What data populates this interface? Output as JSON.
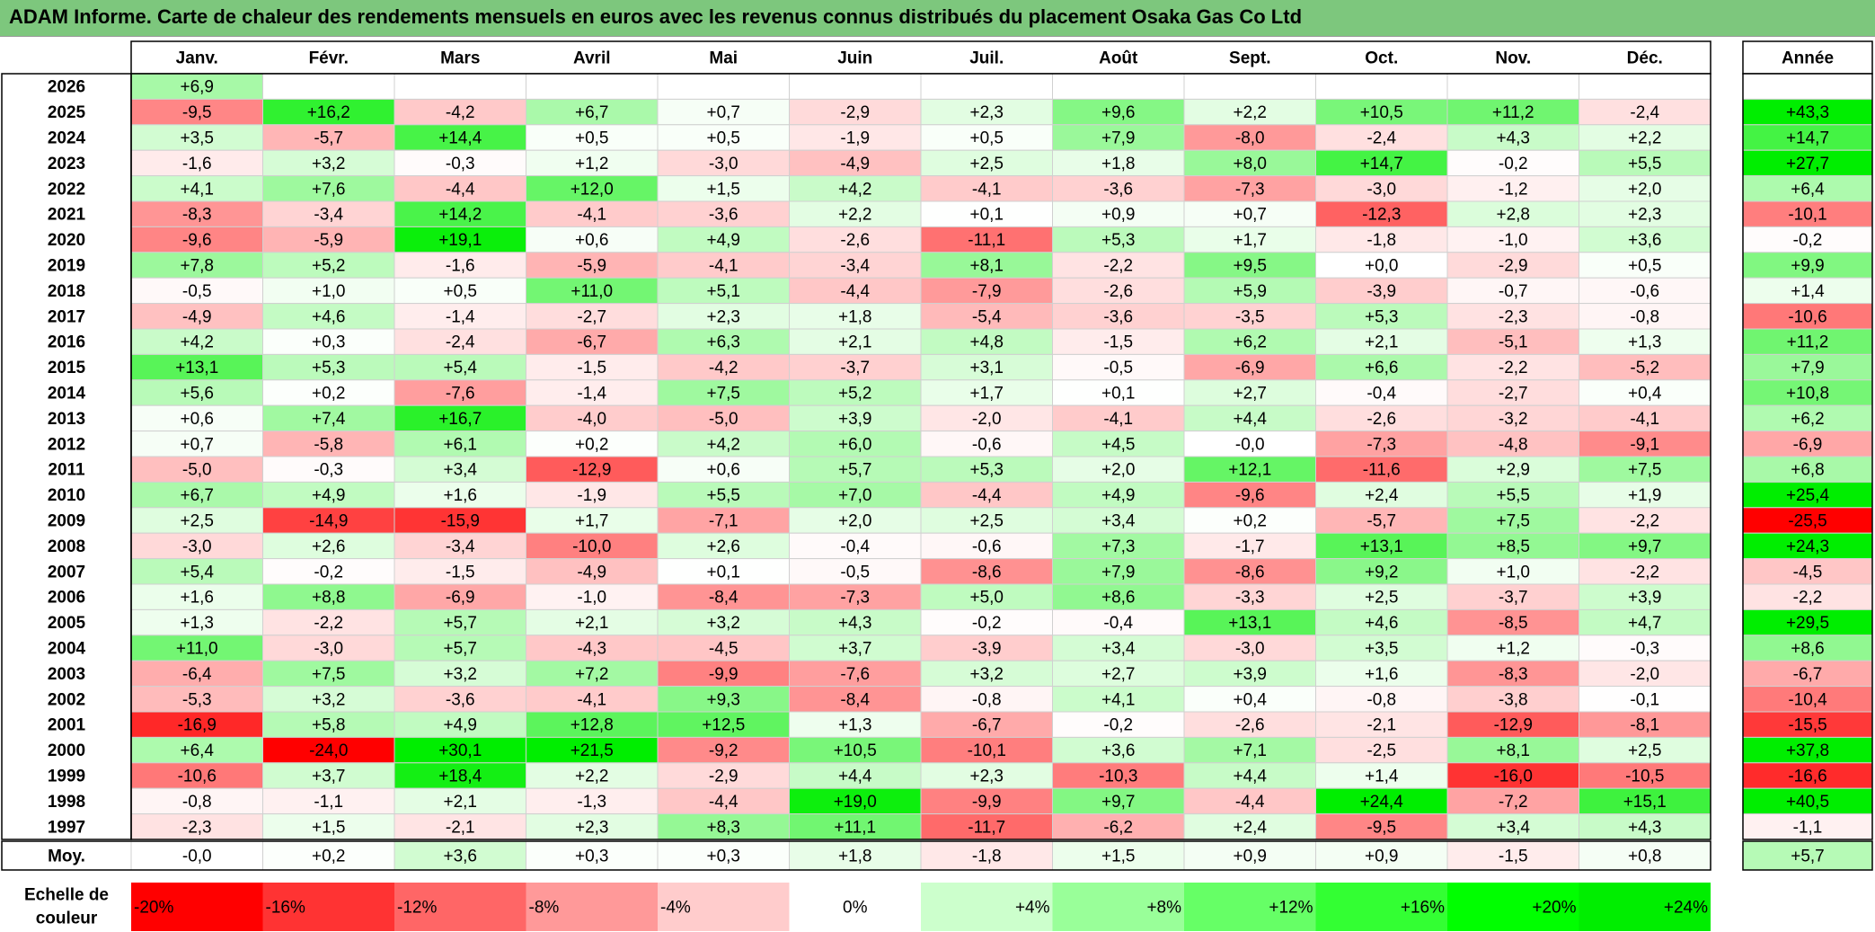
{
  "title": "ADAM Informe. Carte de chaleur des rendements mensuels en euros avec les revenus connus distribués du placement Osaka Gas Co Ltd",
  "chart_data": {
    "type": "heatmap",
    "months": [
      "Janv.",
      "Févr.",
      "Mars",
      "Avril",
      "Mai",
      "Juin",
      "Juil.",
      "Août",
      "Sept.",
      "Oct.",
      "Nov.",
      "Déc."
    ],
    "year_header": "Année",
    "rows": [
      {
        "year": "2026",
        "values": [
          "+6,9",
          null,
          null,
          null,
          null,
          null,
          null,
          null,
          null,
          null,
          null,
          null
        ],
        "annual": null
      },
      {
        "year": "2025",
        "values": [
          "-9,5",
          "+16,2",
          "-4,2",
          "+6,7",
          "+0,7",
          "-2,9",
          "+2,3",
          "+9,6",
          "+2,2",
          "+10,5",
          "+11,2",
          "-2,4"
        ],
        "annual": "+43,3"
      },
      {
        "year": "2024",
        "values": [
          "+3,5",
          "-5,7",
          "+14,4",
          "+0,5",
          "+0,5",
          "-1,9",
          "+0,5",
          "+7,9",
          "-8,0",
          "-2,4",
          "+4,3",
          "+2,2"
        ],
        "annual": "+14,7"
      },
      {
        "year": "2023",
        "values": [
          "-1,6",
          "+3,2",
          "-0,3",
          "+1,2",
          "-3,0",
          "-4,9",
          "+2,5",
          "+1,8",
          "+8,0",
          "+14,7",
          "-0,2",
          "+5,5"
        ],
        "annual": "+27,7"
      },
      {
        "year": "2022",
        "values": [
          "+4,1",
          "+7,6",
          "-4,4",
          "+12,0",
          "+1,5",
          "+4,2",
          "-4,1",
          "-3,6",
          "-7,3",
          "-3,0",
          "-1,2",
          "+2,0"
        ],
        "annual": "+6,4"
      },
      {
        "year": "2021",
        "values": [
          "-8,3",
          "-3,4",
          "+14,2",
          "-4,1",
          "-3,6",
          "+2,2",
          "+0,1",
          "+0,9",
          "+0,7",
          "-12,3",
          "+2,8",
          "+2,3"
        ],
        "annual": "-10,1"
      },
      {
        "year": "2020",
        "values": [
          "-9,6",
          "-5,9",
          "+19,1",
          "+0,6",
          "+4,9",
          "-2,6",
          "-11,1",
          "+5,3",
          "+1,7",
          "-1,8",
          "-1,0",
          "+3,6"
        ],
        "annual": "-0,2"
      },
      {
        "year": "2019",
        "values": [
          "+7,8",
          "+5,2",
          "-1,6",
          "-5,9",
          "-4,1",
          "-3,4",
          "+8,1",
          "-2,2",
          "+9,5",
          "+0,0",
          "-2,9",
          "+0,5"
        ],
        "annual": "+9,9"
      },
      {
        "year": "2018",
        "values": [
          "-0,5",
          "+1,0",
          "+0,5",
          "+11,0",
          "+5,1",
          "-4,4",
          "-7,9",
          "-2,6",
          "+5,9",
          "-3,9",
          "-0,7",
          "-0,6"
        ],
        "annual": "+1,4"
      },
      {
        "year": "2017",
        "values": [
          "-4,9",
          "+4,6",
          "-1,4",
          "-2,7",
          "+2,3",
          "+1,8",
          "-5,4",
          "-3,6",
          "-3,5",
          "+5,3",
          "-2,3",
          "-0,8"
        ],
        "annual": "-10,6"
      },
      {
        "year": "2016",
        "values": [
          "+4,2",
          "+0,3",
          "-2,4",
          "-6,7",
          "+6,3",
          "+2,1",
          "+4,8",
          "-1,5",
          "+6,2",
          "+2,1",
          "-5,1",
          "+1,3"
        ],
        "annual": "+11,2"
      },
      {
        "year": "2015",
        "values": [
          "+13,1",
          "+5,3",
          "+5,4",
          "-1,5",
          "-4,2",
          "-3,7",
          "+3,1",
          "-0,5",
          "-6,9",
          "+6,6",
          "-2,2",
          "-5,2"
        ],
        "annual": "+7,9"
      },
      {
        "year": "2014",
        "values": [
          "+5,6",
          "+0,2",
          "-7,6",
          "-1,4",
          "+7,5",
          "+5,2",
          "+1,7",
          "+0,1",
          "+2,7",
          "-0,4",
          "-2,7",
          "+0,4"
        ],
        "annual": "+10,8"
      },
      {
        "year": "2013",
        "values": [
          "+0,6",
          "+7,4",
          "+16,7",
          "-4,0",
          "-5,0",
          "+3,9",
          "-2,0",
          "-4,1",
          "+4,4",
          "-2,6",
          "-3,2",
          "-4,1"
        ],
        "annual": "+6,2"
      },
      {
        "year": "2012",
        "values": [
          "+0,7",
          "-5,8",
          "+6,1",
          "+0,2",
          "+4,2",
          "+6,0",
          "-0,6",
          "+4,5",
          "-0,0",
          "-7,3",
          "-4,8",
          "-9,1"
        ],
        "annual": "-6,9"
      },
      {
        "year": "2011",
        "values": [
          "-5,0",
          "-0,3",
          "+3,4",
          "-12,9",
          "+0,6",
          "+5,7",
          "+5,3",
          "+2,0",
          "+12,1",
          "-11,6",
          "+2,9",
          "+7,5"
        ],
        "annual": "+6,8"
      },
      {
        "year": "2010",
        "values": [
          "+6,7",
          "+4,9",
          "+1,6",
          "-1,9",
          "+5,5",
          "+7,0",
          "-4,4",
          "+4,9",
          "-9,6",
          "+2,4",
          "+5,5",
          "+1,9"
        ],
        "annual": "+25,4"
      },
      {
        "year": "2009",
        "values": [
          "+2,5",
          "-14,9",
          "-15,9",
          "+1,7",
          "-7,1",
          "+2,0",
          "+2,5",
          "+3,4",
          "+0,2",
          "-5,7",
          "+7,5",
          "-2,2"
        ],
        "annual": "-25,5"
      },
      {
        "year": "2008",
        "values": [
          "-3,0",
          "+2,6",
          "-3,4",
          "-10,0",
          "+2,6",
          "-0,4",
          "-0,6",
          "+7,3",
          "-1,7",
          "+13,1",
          "+8,5",
          "+9,7"
        ],
        "annual": "+24,3"
      },
      {
        "year": "2007",
        "values": [
          "+5,4",
          "-0,2",
          "-1,5",
          "-4,9",
          "+0,1",
          "-0,5",
          "-8,6",
          "+7,9",
          "-8,6",
          "+9,2",
          "+1,0",
          "-2,2"
        ],
        "annual": "-4,5"
      },
      {
        "year": "2006",
        "values": [
          "+1,6",
          "+8,8",
          "-6,9",
          "-1,0",
          "-8,4",
          "-7,3",
          "+5,0",
          "+8,6",
          "-3,3",
          "+2,5",
          "-3,7",
          "+3,9"
        ],
        "annual": "-2,2"
      },
      {
        "year": "2005",
        "values": [
          "+1,3",
          "-2,2",
          "+5,7",
          "+2,1",
          "+3,2",
          "+4,3",
          "-0,2",
          "-0,4",
          "+13,1",
          "+4,6",
          "-8,5",
          "+4,7"
        ],
        "annual": "+29,5"
      },
      {
        "year": "2004",
        "values": [
          "+11,0",
          "-3,0",
          "+5,7",
          "-4,3",
          "-4,5",
          "+3,7",
          "-3,9",
          "+3,4",
          "-3,0",
          "+3,5",
          "+1,2",
          "-0,3"
        ],
        "annual": "+8,6"
      },
      {
        "year": "2003",
        "values": [
          "-6,4",
          "+7,5",
          "+3,2",
          "+7,2",
          "-9,9",
          "-7,6",
          "+3,2",
          "+2,7",
          "+3,9",
          "+1,6",
          "-8,3",
          "-2,0"
        ],
        "annual": "-6,7"
      },
      {
        "year": "2002",
        "values": [
          "-5,3",
          "+3,2",
          "-3,6",
          "-4,1",
          "+9,3",
          "-8,4",
          "-0,8",
          "+4,1",
          "+0,4",
          "-0,8",
          "-3,8",
          "-0,1"
        ],
        "annual": "-10,4"
      },
      {
        "year": "2001",
        "values": [
          "-16,9",
          "+5,8",
          "+4,9",
          "+12,8",
          "+12,5",
          "+1,3",
          "-6,7",
          "-0,2",
          "-2,6",
          "-2,1",
          "-12,9",
          "-8,1"
        ],
        "annual": "-15,5"
      },
      {
        "year": "2000",
        "values": [
          "+6,4",
          "-24,0",
          "+30,1",
          "+21,5",
          "-9,2",
          "+10,5",
          "-10,1",
          "+3,6",
          "+7,1",
          "-2,5",
          "+8,1",
          "+2,5"
        ],
        "annual": "+37,8"
      },
      {
        "year": "1999",
        "values": [
          "-10,6",
          "+3,7",
          "+18,4",
          "+2,2",
          "-2,9",
          "+4,4",
          "+2,3",
          "-10,3",
          "+4,4",
          "+1,4",
          "-16,0",
          "-10,5"
        ],
        "annual": "-16,6"
      },
      {
        "year": "1998",
        "values": [
          "-0,8",
          "-1,1",
          "+2,1",
          "-1,3",
          "-4,4",
          "+19,0",
          "-9,9",
          "+9,7",
          "-4,4",
          "+24,4",
          "-7,2",
          "+15,1"
        ],
        "annual": "+40,5"
      },
      {
        "year": "1997",
        "values": [
          "-2,3",
          "+1,5",
          "-2,1",
          "+2,3",
          "+8,3",
          "+11,1",
          "-11,7",
          "-6,2",
          "+2,4",
          "-9,5",
          "+3,4",
          "+4,3"
        ],
        "annual": "-1,1"
      }
    ],
    "average": {
      "label": "Moy.",
      "values": [
        "-0,0",
        "+0,2",
        "+3,6",
        "+0,3",
        "+0,3",
        "+1,8",
        "-1,8",
        "+1,5",
        "+0,9",
        "+0,9",
        "-1,5",
        "+0,8"
      ],
      "annual": "+5,7"
    },
    "scale": {
      "label_lines": [
        "Echelle de",
        "couleur"
      ],
      "steps": [
        {
          "label": "-20%",
          "value": -20,
          "color": "#ff0000"
        },
        {
          "label": "-16%",
          "value": -16,
          "color": "#ff3333"
        },
        {
          "label": "-12%",
          "value": -12,
          "color": "#ff6666"
        },
        {
          "label": "-8%",
          "value": -8,
          "color": "#ff9999"
        },
        {
          "label": "-4%",
          "value": -4,
          "color": "#ffcccc"
        },
        {
          "label": "0%",
          "value": 0,
          "color": "#ffffff"
        },
        {
          "label": "+4%",
          "value": 4,
          "color": "#ccffcc"
        },
        {
          "label": "+8%",
          "value": 8,
          "color": "#99ff99"
        },
        {
          "label": "+12%",
          "value": 12,
          "color": "#66ff66"
        },
        {
          "label": "+16%",
          "value": 16,
          "color": "#33ff33"
        },
        {
          "label": "+20%",
          "value": 20,
          "color": "#00ff00"
        },
        {
          "label": "+24%",
          "value": 24,
          "color": "#00ee00"
        }
      ]
    }
  }
}
